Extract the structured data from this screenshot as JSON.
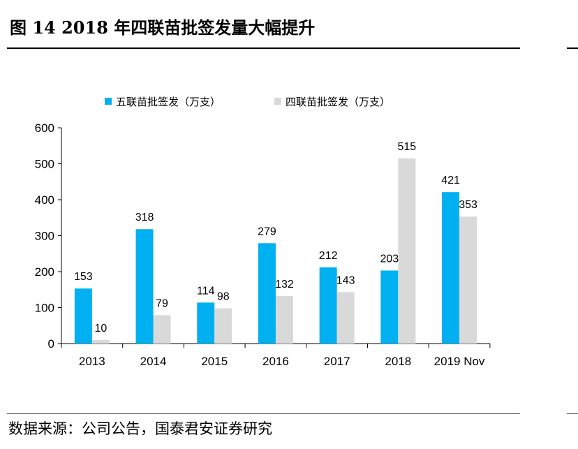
{
  "header": {
    "title": "图 14   2018 年四联苗批签发量大幅提升"
  },
  "footer": {
    "source": "数据来源：公司公告，国泰君安证券研究"
  },
  "chart_data": {
    "type": "bar",
    "title": "",
    "xlabel": "",
    "ylabel": "",
    "ylim": [
      0,
      600
    ],
    "yticks": [
      0,
      100,
      200,
      300,
      400,
      500,
      600
    ],
    "grid": false,
    "legend_position": "top",
    "categories": [
      "2013",
      "2014",
      "2015",
      "2016",
      "2017",
      "2018",
      "2019 Nov"
    ],
    "series": [
      {
        "name": "五联苗批签发（万支）",
        "color": "#00B0F0",
        "values": [
          153,
          318,
          114,
          279,
          212,
          203,
          421
        ]
      },
      {
        "name": "四联苗批签发（万支）",
        "color": "#D9D9D9",
        "values": [
          10,
          79,
          98,
          132,
          143,
          515,
          353
        ]
      }
    ]
  }
}
